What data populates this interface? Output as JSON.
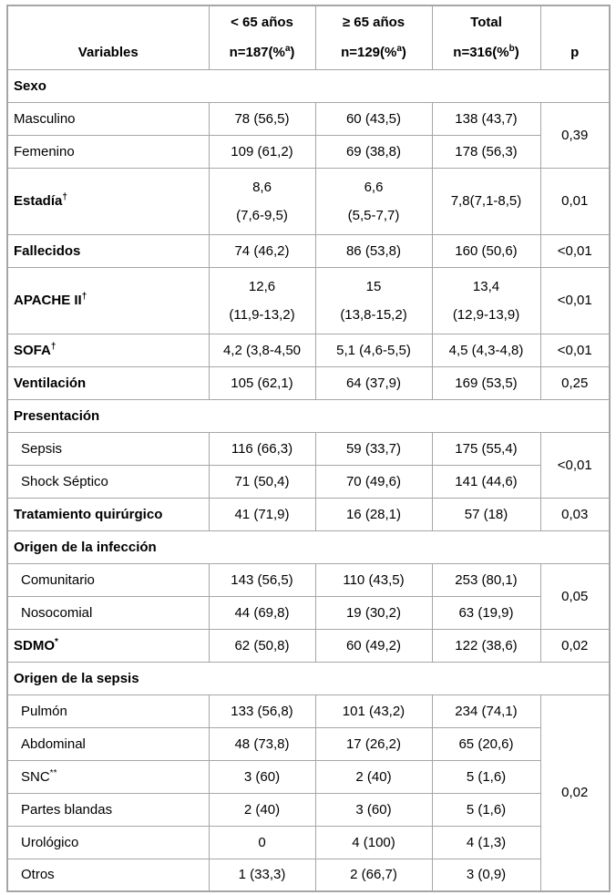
{
  "colors": {
    "border": "#a6a6a6",
    "text": "#000000",
    "background": "#ffffff"
  },
  "table": {
    "header": {
      "variables": "Variables",
      "p": "p",
      "groups": [
        {
          "line1": "< 65 años",
          "line2_pre": "n=187(%",
          "line2_sup": "a",
          "line2_post": ")"
        },
        {
          "line1": "≥ 65 años",
          "line2_pre": "n=129(%",
          "line2_sup": "a",
          "line2_post": ")"
        },
        {
          "line1": "Total",
          "line2_pre": "n=316(%",
          "line2_sup": "b",
          "line2_post": ")"
        }
      ]
    },
    "rows": [
      {
        "type": "section",
        "label": "Sexo"
      },
      {
        "type": "data",
        "label": "Masculino",
        "bold": false,
        "indent": false,
        "cells": [
          "78 (56,5)",
          "60 (43,5)",
          "138 (43,7)"
        ],
        "p": "0,39",
        "p_rowspan": 2
      },
      {
        "type": "data",
        "label": "Femenino",
        "bold": false,
        "indent": false,
        "cells": [
          "109 (61,2)",
          "69 (38,8)",
          "178 (56,3)"
        ]
      },
      {
        "type": "data",
        "label": "Estadía",
        "sup": "†",
        "bold": true,
        "tall": true,
        "cells": [
          [
            "8,6",
            "(7,6-9,5)"
          ],
          [
            "6,6",
            "(5,5-7,7)"
          ],
          [
            "7,8(7,1-8,5)"
          ]
        ],
        "p": "0,01",
        "p_rowspan": 1
      },
      {
        "type": "data",
        "label": "Fallecidos",
        "bold": true,
        "cells": [
          "74 (46,2)",
          "86 (53,8)",
          "160 (50,6)"
        ],
        "p": "<0,01",
        "p_rowspan": 1
      },
      {
        "type": "data",
        "label": "APACHE II",
        "sup": "†",
        "bold": true,
        "tall": true,
        "cells": [
          [
            "12,6",
            "(11,9-13,2)"
          ],
          [
            "15",
            "(13,8-15,2)"
          ],
          [
            "13,4",
            "(12,9-13,9)"
          ]
        ],
        "p": "<0,01",
        "p_rowspan": 1
      },
      {
        "type": "data",
        "label": "SOFA",
        "sup": "†",
        "bold": true,
        "cells": [
          "4,2 (3,8-4,50",
          "5,1 (4,6-5,5)",
          "4,5 (4,3-4,8)"
        ],
        "p": "<0,01",
        "p_rowspan": 1
      },
      {
        "type": "data",
        "label": "Ventilación",
        "bold": true,
        "cells": [
          "105 (62,1)",
          "64 (37,9)",
          "169 (53,5)"
        ],
        "p": "0,25",
        "p_rowspan": 1
      },
      {
        "type": "section",
        "label": "Presentación"
      },
      {
        "type": "data",
        "label": "Sepsis",
        "indent": true,
        "cells": [
          "116 (66,3)",
          "59 (33,7)",
          "175 (55,4)"
        ],
        "p": "<0,01",
        "p_rowspan": 2
      },
      {
        "type": "data",
        "label": "Shock Séptico",
        "indent": true,
        "cells": [
          "71 (50,4)",
          "70 (49,6)",
          "141 (44,6)"
        ]
      },
      {
        "type": "data",
        "label": "Tratamiento quirúrgico",
        "bold": true,
        "cells": [
          "41 (71,9)",
          "16 (28,1)",
          "57 (18)"
        ],
        "p": "0,03",
        "p_rowspan": 1
      },
      {
        "type": "section",
        "label": "Origen de la infección"
      },
      {
        "type": "data",
        "label": "Comunitario",
        "indent": true,
        "cells": [
          "143 (56,5)",
          "110 (43,5)",
          "253 (80,1)"
        ],
        "p": "0,05",
        "p_rowspan": 2
      },
      {
        "type": "data",
        "label": "Nosocomial",
        "indent": true,
        "cells": [
          "44 (69,8)",
          "19 (30,2)",
          "63 (19,9)"
        ]
      },
      {
        "type": "data",
        "label": "SDMO",
        "sup": "*",
        "bold": true,
        "cells": [
          "62 (50,8)",
          "60 (49,2)",
          "122 (38,6)"
        ],
        "p": "0,02",
        "p_rowspan": 1
      },
      {
        "type": "section",
        "label": "Origen de la sepsis"
      },
      {
        "type": "data",
        "label": "Pulmón",
        "indent": true,
        "cells": [
          "133 (56,8)",
          "101 (43,2)",
          "234 (74,1)"
        ],
        "p": "0,02",
        "p_rowspan": 6
      },
      {
        "type": "data",
        "label": "Abdominal",
        "indent": true,
        "cells": [
          "48 (73,8)",
          "17 (26,2)",
          "65 (20,6)"
        ]
      },
      {
        "type": "data",
        "label": "SNC",
        "sup": "**",
        "indent": true,
        "cells": [
          "3 (60)",
          "2 (40)",
          "5 (1,6)"
        ]
      },
      {
        "type": "data",
        "label": "Partes blandas",
        "indent": true,
        "cells": [
          "2 (40)",
          "3 (60)",
          "5 (1,6)"
        ]
      },
      {
        "type": "data",
        "label": "Urológico",
        "indent": true,
        "cells": [
          "0",
          "4 (100)",
          "4 (1,3)"
        ]
      },
      {
        "type": "data",
        "label": "Otros",
        "indent": true,
        "cells": [
          "1 (33,3)",
          "2 (66,7)",
          "3 (0,9)"
        ]
      }
    ]
  }
}
